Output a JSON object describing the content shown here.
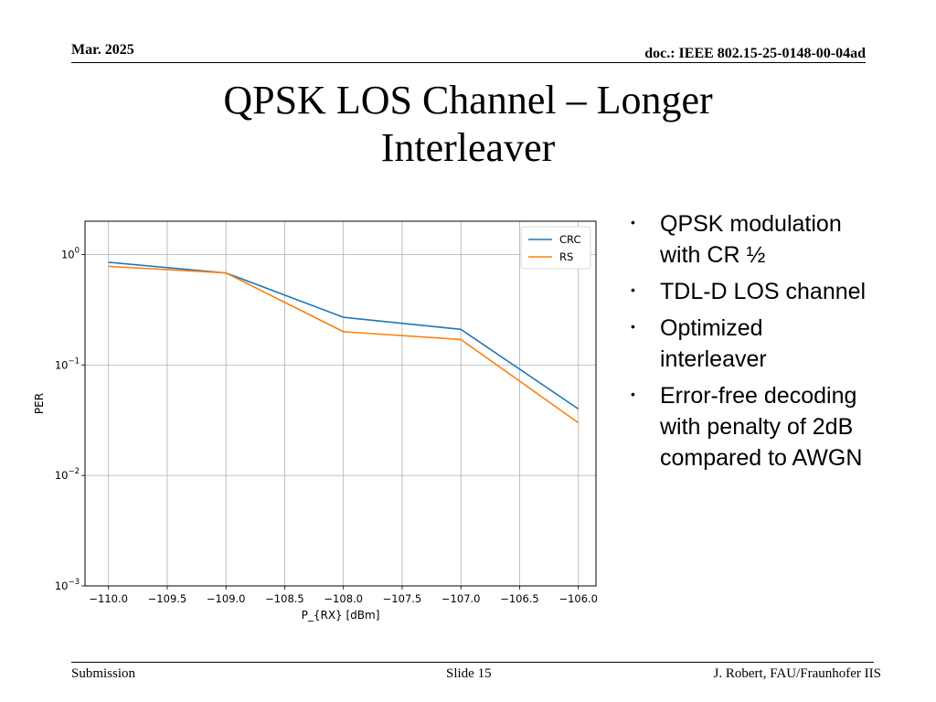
{
  "header": {
    "date": "Mar. 2025",
    "doc": "doc.: IEEE 802.15-25-0148-00-04ad"
  },
  "title": {
    "line1": "QPSK LOS Channel – Longer",
    "line2": "Interleaver"
  },
  "bullets": [
    "QPSK modulation with CR ½",
    "TDL-D LOS channel",
    "Optimized interleaver",
    "Error-free decoding with penalty of 2dB compared to AWGN"
  ],
  "footer": {
    "left": "Submission",
    "center": "Slide 15",
    "right": "J. Robert, FAU/Fraunhofer IIS"
  },
  "colors": {
    "crc": "#1f77b4",
    "rs": "#ff7f0e",
    "grid": "#b0b0b0"
  },
  "chart_data": {
    "type": "line",
    "title": "",
    "xlabel": "P_{RX} [dBm]",
    "ylabel": "PER",
    "yscale": "log",
    "xlim": [
      -110.2,
      -105.85
    ],
    "ylim": [
      0.001,
      2.0
    ],
    "grid": true,
    "legend_position": "top-right",
    "x_ticks": [
      -110.0,
      -109.5,
      -109.0,
      -108.5,
      -108.0,
      -107.5,
      -107.0,
      -106.5,
      -106.0
    ],
    "x_tick_labels": [
      "−110.0",
      "−109.5",
      "−109.0",
      "−108.5",
      "−108.0",
      "−107.5",
      "−107.0",
      "−106.5",
      "−106.0"
    ],
    "y_ticks": [
      1,
      0.1,
      0.01,
      0.001
    ],
    "y_tick_labels": [
      {
        "base": "10",
        "exp": "0"
      },
      {
        "base": "10",
        "exp": "−1"
      },
      {
        "base": "10",
        "exp": "−2"
      },
      {
        "base": "10",
        "exp": "−3"
      }
    ],
    "series": [
      {
        "name": "CRC",
        "x": [
          -110.0,
          -109.0,
          -108.0,
          -107.0,
          -106.0
        ],
        "values": [
          0.85,
          0.68,
          0.27,
          0.21,
          0.04
        ]
      },
      {
        "name": "RS",
        "x": [
          -110.0,
          -109.0,
          -108.0,
          -107.0,
          -106.0
        ],
        "values": [
          0.78,
          0.68,
          0.2,
          0.17,
          0.03
        ]
      }
    ]
  }
}
